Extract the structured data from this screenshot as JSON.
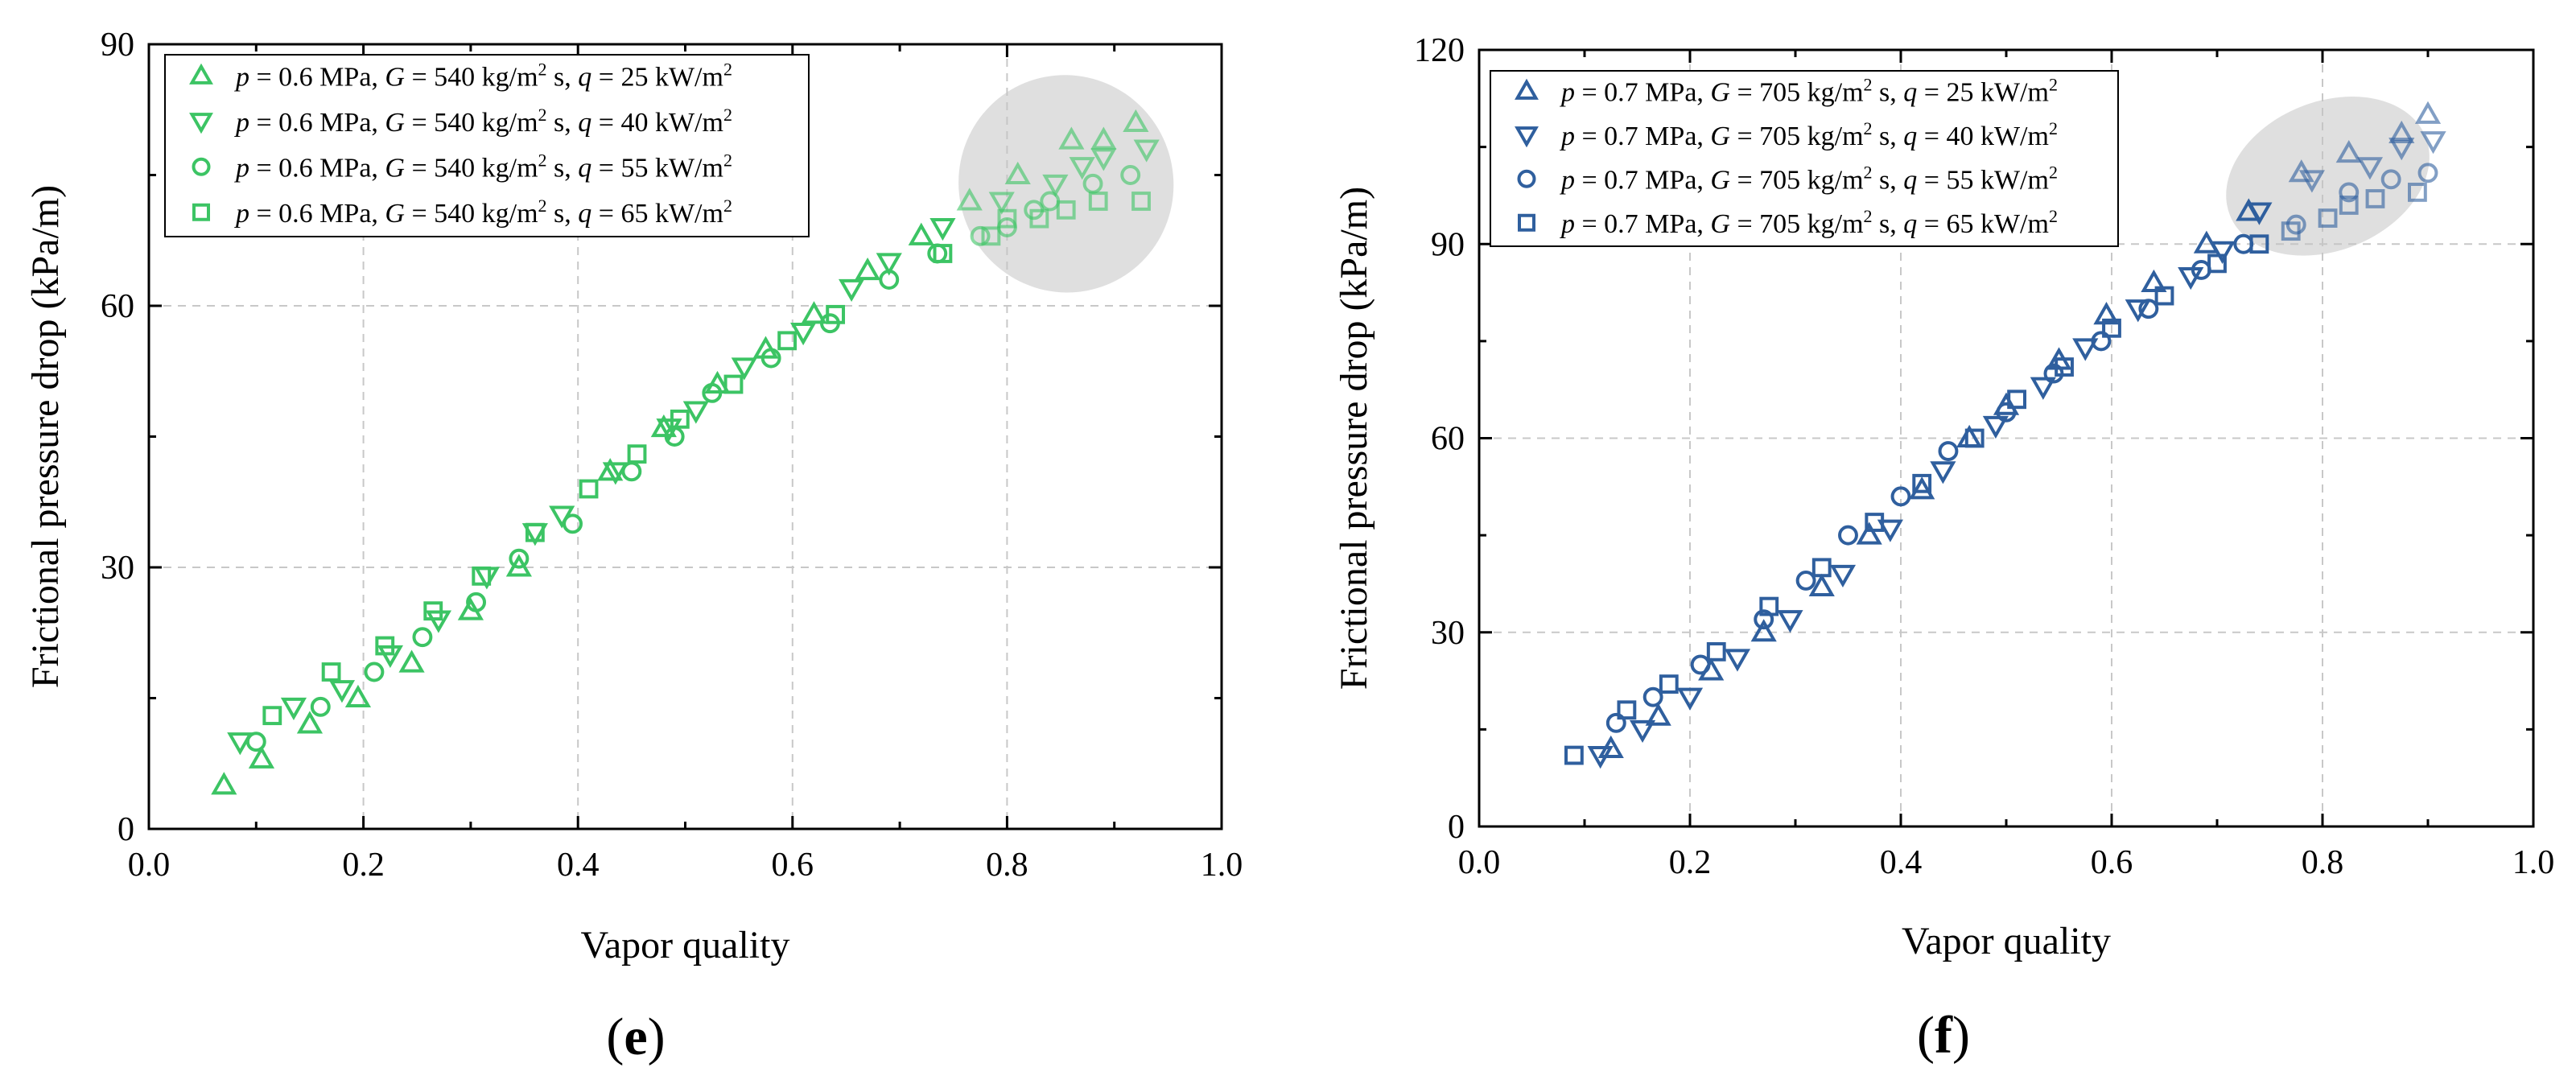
{
  "chart_data": [
    {
      "type": "scatter",
      "panel_label_open": "(",
      "panel_label_letter": "e",
      "panel_label_close": ")",
      "xlabel": "Vapor quality",
      "ylabel": "Frictional pressure drop (kPa/m)",
      "xlim": [
        0.0,
        1.0
      ],
      "ylim": [
        0,
        90
      ],
      "xticks": [
        "0.0",
        "0.2",
        "0.4",
        "0.6",
        "0.8",
        "1.0"
      ],
      "yticks": [
        "0",
        "30",
        "60",
        "90"
      ],
      "grid": true,
      "color": "#3cc464",
      "legend_position": "top-left",
      "highlight": {
        "x_center": 0.855,
        "y_center": 74.0,
        "x_radius": 0.1,
        "y_radius": 12.5
      },
      "series": [
        {
          "name": "p = 0.6 MPa, G = 540 kg/m2 s, q = 25 kW/m2",
          "legend": {
            "p": "p",
            "p_val": " = 0.6 MPa, ",
            "G": "G",
            "G_val": " = 540 kg/m",
            "G_sup": "2",
            "G_tail": " s, ",
            "q": "q",
            "q_val": " = 25 kW/m",
            "q_sup": "2"
          },
          "marker": "triangle-up",
          "x": [
            0.07,
            0.105,
            0.15,
            0.195,
            0.245,
            0.3,
            0.345,
            0.43,
            0.48,
            0.53,
            0.575,
            0.62,
            0.67,
            0.72,
            0.765,
            0.81,
            0.86,
            0.89,
            0.92
          ],
          "y": [
            5,
            8,
            12,
            15,
            19,
            25,
            30,
            41,
            46,
            51,
            55,
            59,
            64,
            68,
            72,
            75,
            79,
            79,
            81
          ]
        },
        {
          "name": "p = 0.6 MPa, G = 540 kg/m2 s, q = 40 kW/m2",
          "legend": {
            "p": "p",
            "p_val": " = 0.6 MPa, ",
            "G": "G",
            "G_val": " = 540 kg/m",
            "G_sup": "2",
            "G_tail": " s, ",
            "q": "q",
            "q_val": " = 40 kW/m",
            "q_sup": "2"
          },
          "marker": "triangle-down",
          "x": [
            0.085,
            0.135,
            0.18,
            0.225,
            0.27,
            0.315,
            0.36,
            0.385,
            0.435,
            0.485,
            0.51,
            0.555,
            0.61,
            0.655,
            0.69,
            0.74,
            0.795,
            0.845,
            0.87,
            0.89,
            0.93
          ],
          "y": [
            10,
            14,
            16,
            20,
            24,
            29,
            34,
            36,
            41,
            46,
            48,
            53,
            57,
            62,
            65,
            69,
            72,
            74,
            76,
            77,
            78
          ]
        },
        {
          "name": "p = 0.6 MPa, G = 540 kg/m2 s, q = 55 kW/m2",
          "legend": {
            "p": "p",
            "p_val": " = 0.6 MPa, ",
            "G": "G",
            "G_val": " = 540 kg/m",
            "G_sup": "2",
            "G_tail": " s, ",
            "q": "q",
            "q_val": " = 55 kW/m",
            "q_sup": "2"
          },
          "marker": "circle",
          "x": [
            0.1,
            0.16,
            0.21,
            0.255,
            0.305,
            0.345,
            0.395,
            0.45,
            0.49,
            0.525,
            0.58,
            0.635,
            0.69,
            0.735,
            0.775,
            0.8,
            0.825,
            0.84,
            0.88,
            0.915
          ],
          "y": [
            10,
            14,
            18,
            22,
            26,
            31,
            35,
            41,
            45,
            50,
            54,
            58,
            63,
            66,
            68,
            69,
            71,
            72,
            74,
            75
          ]
        },
        {
          "name": "p = 0.6 MPa, G = 540 kg/m2 s, q = 65 kW/m2",
          "legend": {
            "p": "p",
            "p_val": " = 0.6 MPa, ",
            "G": "G",
            "G_val": " = 540 kg/m",
            "G_sup": "2",
            "G_tail": " s, ",
            "q": "q",
            "q_val": " = 65 kW/m",
            "q_sup": "2"
          },
          "marker": "square",
          "x": [
            0.115,
            0.17,
            0.22,
            0.265,
            0.31,
            0.36,
            0.41,
            0.455,
            0.495,
            0.545,
            0.595,
            0.64,
            0.74,
            0.785,
            0.8,
            0.83,
            0.855,
            0.885,
            0.925
          ],
          "y": [
            13,
            18,
            21,
            25,
            29,
            34,
            39,
            43,
            47,
            51,
            56,
            59,
            66,
            68,
            70,
            70,
            71,
            72,
            72
          ]
        }
      ]
    },
    {
      "type": "scatter",
      "panel_label_open": "(",
      "panel_label_letter": "f",
      "panel_label_close": ")",
      "xlabel": "Vapor quality",
      "ylabel": "Frictional pressure drop (kPa/m)",
      "xlim": [
        0.0,
        1.0
      ],
      "ylim": [
        0,
        120
      ],
      "xticks": [
        "0.0",
        "0.2",
        "0.4",
        "0.6",
        "0.8",
        "1.0"
      ],
      "yticks": [
        "0",
        "30",
        "60",
        "90",
        "120"
      ],
      "grid": true,
      "color": "#2f5f9e",
      "legend_position": "top-left",
      "highlight": {
        "x_center": 0.805,
        "y_center": 100.5,
        "x_radius": 0.1,
        "y_radius": 11.5
      },
      "series": [
        {
          "name": "p = 0.7 MPa, G = 705 kg/m2 s, q = 25 kW/m2",
          "legend": {
            "p": "p",
            "p_val": " = 0.7 MPa, ",
            "G": "G",
            "G_val": " = 705 kg/m",
            "G_sup": "2",
            "G_tail": " s, ",
            "q": "q",
            "q_val": " = 25 kW/m",
            "q_sup": "2"
          },
          "marker": "triangle-up",
          "x": [
            0.125,
            0.17,
            0.22,
            0.27,
            0.325,
            0.37,
            0.42,
            0.465,
            0.5,
            0.55,
            0.595,
            0.64,
            0.69,
            0.73,
            0.78,
            0.825,
            0.875,
            0.9
          ],
          "y": [
            12,
            17,
            24,
            30,
            37,
            45,
            52,
            60,
            65,
            72,
            79,
            84,
            90,
            95,
            101,
            104,
            107,
            110
          ]
        },
        {
          "name": "p = 0.7 MPa, G = 705 kg/m2 s, q = 40 kW/m2",
          "legend": {
            "p": "p",
            "p_val": " = 0.7 MPa, ",
            "G": "G",
            "G_val": " = 705 kg/m",
            "G_sup": "2",
            "G_tail": " s, ",
            "q": "q",
            "q_val": " = 40 kW/m",
            "q_sup": "2"
          },
          "marker": "triangle-down",
          "x": [
            0.115,
            0.155,
            0.2,
            0.245,
            0.295,
            0.345,
            0.39,
            0.44,
            0.49,
            0.535,
            0.575,
            0.625,
            0.675,
            0.705,
            0.74,
            0.79,
            0.845,
            0.875,
            0.905
          ],
          "y": [
            11,
            15,
            20,
            26,
            32,
            39,
            46,
            55,
            62,
            68,
            74,
            80,
            85,
            89,
            95,
            100,
            102,
            105,
            106
          ]
        },
        {
          "name": "p = 0.7 MPa, G = 705 kg/m2 s, q = 55 kW/m2",
          "legend": {
            "p": "p",
            "p_val": " = 0.7 MPa, ",
            "G": "G",
            "G_val": " = 705 kg/m",
            "G_sup": "2",
            "G_tail": " s, ",
            "q": "q",
            "q_val": " = 55 kW/m",
            "q_sup": "2"
          },
          "marker": "circle",
          "x": [
            0.13,
            0.165,
            0.21,
            0.27,
            0.31,
            0.35,
            0.4,
            0.445,
            0.5,
            0.545,
            0.59,
            0.635,
            0.685,
            0.725,
            0.775,
            0.825,
            0.865,
            0.9
          ],
          "y": [
            16,
            20,
            25,
            32,
            38,
            45,
            51,
            58,
            64,
            70,
            75,
            80,
            86,
            90,
            93,
            98,
            100,
            101
          ]
        },
        {
          "name": "p = 0.7 MPa, G = 705 kg/m2 s, q = 65 kW/m2",
          "legend": {
            "p": "p",
            "p_val": " = 0.7 MPa, ",
            "G": "G",
            "G_val": " = 705 kg/m",
            "G_sup": "2",
            "G_tail": " s, ",
            "q": "q",
            "q_val": " = 65 kW/m",
            "q_sup": "2"
          },
          "marker": "square",
          "x": [
            0.09,
            0.14,
            0.18,
            0.225,
            0.275,
            0.325,
            0.375,
            0.42,
            0.47,
            0.51,
            0.555,
            0.6,
            0.65,
            0.7,
            0.74,
            0.77,
            0.805,
            0.825,
            0.85,
            0.89
          ],
          "y": [
            11,
            18,
            22,
            27,
            34,
            40,
            47,
            53,
            60,
            66,
            71,
            77,
            82,
            87,
            90,
            92,
            94,
            96,
            97,
            98
          ]
        }
      ]
    }
  ]
}
